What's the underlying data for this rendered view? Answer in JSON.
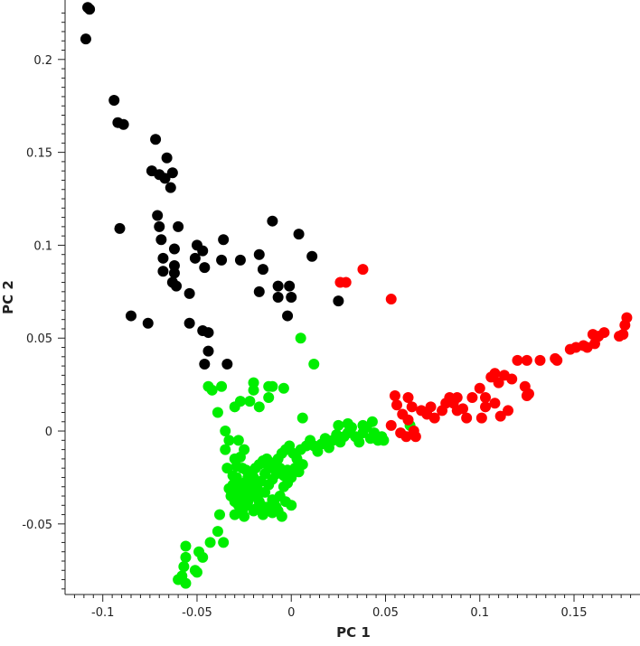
{
  "chart_data": {
    "type": "scatter",
    "xlabel": "PC 1",
    "ylabel": "PC 2",
    "xlim": [
      -0.12,
      0.185
    ],
    "ylim": [
      -0.088,
      0.232
    ],
    "xticks": [
      -0.1,
      -0.05,
      0,
      0.05,
      0.1,
      0.15
    ],
    "xtick_labels": [
      "-0.1",
      "-0.05",
      "0",
      "0.05",
      "0.1",
      "0.15"
    ],
    "yticks": [
      -0.05,
      0,
      0.05,
      0.1,
      0.15,
      0.2
    ],
    "ytick_labels": [
      "-0.05",
      "0",
      "0.05",
      "0.1",
      "0.15",
      "0.2"
    ],
    "grid": false,
    "legend": "none",
    "series": [
      {
        "color": "#000000",
        "points": [
          [
            -0.108,
            0.228
          ],
          [
            -0.107,
            0.227
          ],
          [
            -0.109,
            0.211
          ],
          [
            -0.094,
            0.178
          ],
          [
            -0.092,
            0.166
          ],
          [
            -0.089,
            0.165
          ],
          [
            -0.091,
            0.109
          ],
          [
            -0.085,
            0.062
          ],
          [
            -0.076,
            0.058
          ],
          [
            -0.074,
            0.14
          ],
          [
            -0.072,
            0.157
          ],
          [
            -0.07,
            0.138
          ],
          [
            -0.067,
            0.136
          ],
          [
            -0.066,
            0.147
          ],
          [
            -0.064,
            0.131
          ],
          [
            -0.063,
            0.139
          ],
          [
            -0.071,
            0.116
          ],
          [
            -0.07,
            0.11
          ],
          [
            -0.06,
            0.11
          ],
          [
            -0.069,
            0.103
          ],
          [
            -0.068,
            0.093
          ],
          [
            -0.068,
            0.086
          ],
          [
            -0.062,
            0.098
          ],
          [
            -0.062,
            0.089
          ],
          [
            -0.062,
            0.085
          ],
          [
            -0.063,
            0.08
          ],
          [
            -0.061,
            0.078
          ],
          [
            -0.05,
            0.1
          ],
          [
            -0.051,
            0.093
          ],
          [
            -0.046,
            0.088
          ],
          [
            -0.047,
            0.097
          ],
          [
            -0.054,
            0.074
          ],
          [
            -0.054,
            0.058
          ],
          [
            -0.047,
            0.054
          ],
          [
            -0.044,
            0.053
          ],
          [
            -0.044,
            0.043
          ],
          [
            -0.046,
            0.036
          ],
          [
            -0.034,
            0.036
          ],
          [
            -0.037,
            0.092
          ],
          [
            -0.036,
            0.103
          ],
          [
            -0.027,
            0.092
          ],
          [
            -0.017,
            0.095
          ],
          [
            -0.015,
            0.087
          ],
          [
            -0.01,
            0.113
          ],
          [
            -0.017,
            0.075
          ],
          [
            -0.007,
            0.078
          ],
          [
            -0.007,
            0.072
          ],
          [
            -0.001,
            0.078
          ],
          [
            0.0,
            0.072
          ],
          [
            -0.002,
            0.062
          ],
          [
            0.004,
            0.106
          ],
          [
            0.011,
            0.094
          ],
          [
            0.025,
            0.07
          ]
        ]
      },
      {
        "color": "#00ee00",
        "points": [
          [
            -0.044,
            0.024
          ],
          [
            -0.042,
            0.022
          ],
          [
            -0.037,
            0.024
          ],
          [
            -0.039,
            0.01
          ],
          [
            -0.03,
            0.013
          ],
          [
            -0.027,
            0.016
          ],
          [
            -0.022,
            0.016
          ],
          [
            -0.02,
            0.022
          ],
          [
            -0.02,
            0.026
          ],
          [
            -0.017,
            0.013
          ],
          [
            -0.012,
            0.024
          ],
          [
            -0.012,
            0.018
          ],
          [
            -0.004,
            0.023
          ],
          [
            -0.01,
            0.024
          ],
          [
            0.005,
            0.05
          ],
          [
            0.012,
            0.036
          ],
          [
            0.006,
            0.007
          ],
          [
            -0.035,
            0.0
          ],
          [
            -0.033,
            -0.005
          ],
          [
            -0.035,
            -0.01
          ],
          [
            -0.028,
            -0.005
          ],
          [
            -0.025,
            -0.01
          ],
          [
            -0.03,
            -0.015
          ],
          [
            -0.026,
            -0.02
          ],
          [
            -0.029,
            -0.025
          ],
          [
            -0.027,
            -0.03
          ],
          [
            -0.025,
            -0.028
          ],
          [
            -0.023,
            -0.025
          ],
          [
            -0.021,
            -0.023
          ],
          [
            -0.019,
            -0.02
          ],
          [
            -0.017,
            -0.018
          ],
          [
            -0.015,
            -0.016
          ],
          [
            -0.013,
            -0.015
          ],
          [
            -0.011,
            -0.017
          ],
          [
            -0.009,
            -0.019
          ],
          [
            -0.007,
            -0.015
          ],
          [
            -0.005,
            -0.012
          ],
          [
            -0.003,
            -0.01
          ],
          [
            -0.001,
            -0.008
          ],
          [
            0.001,
            -0.012
          ],
          [
            0.003,
            -0.015
          ],
          [
            0.005,
            -0.01
          ],
          [
            0.008,
            -0.008
          ],
          [
            0.01,
            -0.005
          ],
          [
            0.012,
            -0.008
          ],
          [
            0.014,
            -0.011
          ],
          [
            0.016,
            -0.007
          ],
          [
            0.018,
            -0.004
          ],
          [
            0.02,
            -0.009
          ],
          [
            0.022,
            -0.005
          ],
          [
            0.024,
            -0.002
          ],
          [
            0.026,
            -0.006
          ],
          [
            0.028,
            -0.003
          ],
          [
            0.03,
            -0.001
          ],
          [
            0.032,
            0.002
          ],
          [
            0.034,
            -0.003
          ],
          [
            0.036,
            -0.006
          ],
          [
            0.038,
            -0.001
          ],
          [
            0.04,
            0.002
          ],
          [
            0.042,
            -0.004
          ],
          [
            0.044,
            -0.001
          ],
          [
            0.046,
            -0.005
          ],
          [
            0.048,
            -0.003
          ],
          [
            0.025,
            0.003
          ],
          [
            0.03,
            0.004
          ],
          [
            0.038,
            0.003
          ],
          [
            0.043,
            0.005
          ],
          [
            0.049,
            -0.005
          ],
          [
            -0.032,
            -0.035
          ],
          [
            -0.03,
            -0.038
          ],
          [
            -0.028,
            -0.032
          ],
          [
            -0.026,
            -0.036
          ],
          [
            -0.024,
            -0.04
          ],
          [
            -0.022,
            -0.034
          ],
          [
            -0.02,
            -0.03
          ],
          [
            -0.018,
            -0.036
          ],
          [
            -0.016,
            -0.04
          ],
          [
            -0.014,
            -0.033
          ],
          [
            -0.012,
            -0.029
          ],
          [
            -0.01,
            -0.037
          ],
          [
            -0.008,
            -0.041
          ],
          [
            -0.006,
            -0.035
          ],
          [
            -0.004,
            -0.03
          ],
          [
            -0.002,
            -0.028
          ],
          [
            -0.03,
            -0.045
          ],
          [
            -0.025,
            -0.046
          ],
          [
            -0.02,
            -0.043
          ],
          [
            -0.015,
            -0.045
          ],
          [
            -0.01,
            -0.044
          ],
          [
            -0.005,
            -0.046
          ],
          [
            0.0,
            -0.04
          ],
          [
            -0.024,
            -0.021
          ],
          [
            -0.022,
            -0.027
          ],
          [
            -0.02,
            -0.025
          ],
          [
            -0.018,
            -0.031
          ],
          [
            -0.016,
            -0.027
          ],
          [
            -0.014,
            -0.023
          ],
          [
            -0.012,
            -0.02
          ],
          [
            -0.01,
            -0.026
          ],
          [
            -0.008,
            -0.023
          ],
          [
            -0.006,
            -0.02
          ],
          [
            -0.004,
            -0.024
          ],
          [
            -0.002,
            -0.021
          ],
          [
            0.0,
            -0.025
          ],
          [
            0.002,
            -0.02
          ],
          [
            0.004,
            -0.022
          ],
          [
            0.006,
            -0.018
          ],
          [
            -0.026,
            -0.043
          ],
          [
            -0.028,
            -0.04
          ],
          [
            -0.023,
            -0.038
          ],
          [
            -0.019,
            -0.042
          ],
          [
            -0.017,
            -0.038
          ],
          [
            -0.013,
            -0.041
          ],
          [
            -0.009,
            -0.039
          ],
          [
            -0.007,
            -0.043
          ],
          [
            -0.003,
            -0.038
          ],
          [
            -0.038,
            -0.045
          ],
          [
            -0.039,
            -0.054
          ],
          [
            -0.036,
            -0.06
          ],
          [
            -0.043,
            -0.06
          ],
          [
            -0.049,
            -0.065
          ],
          [
            -0.056,
            -0.062
          ],
          [
            -0.056,
            -0.068
          ],
          [
            -0.057,
            -0.073
          ],
          [
            -0.058,
            -0.078
          ],
          [
            -0.06,
            -0.08
          ],
          [
            -0.056,
            -0.082
          ],
          [
            -0.051,
            -0.075
          ],
          [
            -0.05,
            -0.076
          ],
          [
            -0.047,
            -0.068
          ],
          [
            0.063,
            0.003
          ],
          [
            -0.034,
            -0.02
          ],
          [
            -0.031,
            -0.024
          ],
          [
            -0.029,
            -0.019
          ],
          [
            -0.027,
            -0.014
          ],
          [
            -0.031,
            -0.029
          ],
          [
            -0.033,
            -0.031
          ],
          [
            -0.029,
            -0.034
          ],
          [
            -0.027,
            -0.038
          ],
          [
            -0.024,
            -0.032
          ]
        ]
      },
      {
        "color": "#ff0000",
        "points": [
          [
            0.026,
            0.08
          ],
          [
            0.029,
            0.08
          ],
          [
            0.038,
            0.087
          ],
          [
            0.053,
            0.071
          ],
          [
            0.055,
            0.019
          ],
          [
            0.056,
            0.014
          ],
          [
            0.053,
            0.003
          ],
          [
            0.062,
            0.018
          ],
          [
            0.059,
            0.009
          ],
          [
            0.064,
            0.013
          ],
          [
            0.062,
            0.006
          ],
          [
            0.058,
            -0.001
          ],
          [
            0.061,
            -0.003
          ],
          [
            0.066,
            -0.003
          ],
          [
            0.065,
            0.0
          ],
          [
            0.069,
            0.011
          ],
          [
            0.072,
            0.009
          ],
          [
            0.074,
            0.013
          ],
          [
            0.076,
            0.007
          ],
          [
            0.08,
            0.011
          ],
          [
            0.082,
            0.015
          ],
          [
            0.084,
            0.018
          ],
          [
            0.086,
            0.015
          ],
          [
            0.088,
            0.011
          ],
          [
            0.088,
            0.018
          ],
          [
            0.091,
            0.012
          ],
          [
            0.093,
            0.007
          ],
          [
            0.096,
            0.018
          ],
          [
            0.1,
            0.023
          ],
          [
            0.103,
            0.018
          ],
          [
            0.106,
            0.029
          ],
          [
            0.108,
            0.031
          ],
          [
            0.11,
            0.026
          ],
          [
            0.108,
            0.015
          ],
          [
            0.113,
            0.03
          ],
          [
            0.117,
            0.028
          ],
          [
            0.12,
            0.038
          ],
          [
            0.124,
            0.024
          ],
          [
            0.125,
            0.038
          ],
          [
            0.126,
            0.02
          ],
          [
            0.125,
            0.019
          ],
          [
            0.132,
            0.038
          ],
          [
            0.14,
            0.039
          ],
          [
            0.141,
            0.038
          ],
          [
            0.148,
            0.044
          ],
          [
            0.151,
            0.045
          ],
          [
            0.155,
            0.046
          ],
          [
            0.157,
            0.045
          ],
          [
            0.161,
            0.047
          ],
          [
            0.163,
            0.051
          ],
          [
            0.16,
            0.052
          ],
          [
            0.166,
            0.053
          ],
          [
            0.174,
            0.051
          ],
          [
            0.176,
            0.052
          ],
          [
            0.177,
            0.057
          ],
          [
            0.178,
            0.061
          ],
          [
            0.103,
            0.013
          ],
          [
            0.111,
            0.008
          ],
          [
            0.101,
            0.007
          ],
          [
            0.115,
            0.011
          ]
        ]
      }
    ]
  }
}
